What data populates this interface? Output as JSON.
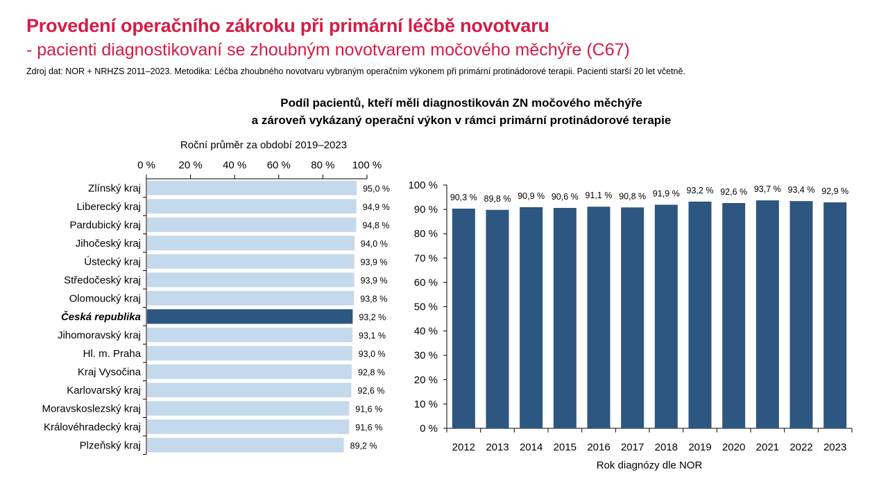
{
  "header": {
    "title": "Provedení operačního zákroku při primární léčbě novotvaru",
    "subtitle": "- pacienti diagnostikovaní se zhoubným novotvarem močového měchýře (C67)",
    "source": "Zdroj dat: NOR + NRHZS 2011–2023. Metodika: Léčba zhoubného novotvaru vybraným operačním výkonem při primární protinádorové terapii. Pacienti starší 20 let včetně."
  },
  "chart_heading": {
    "line1": "Podíl pacientů, kteří měli diagnostikován ZN močového měchýře",
    "line2": "a zároveň vykázaný operační výkon v rámci primární protinádorové terapie"
  },
  "colors": {
    "title": "#d41c46",
    "bar_light": "#c5d9ec",
    "bar_dark": "#2d5680",
    "axis": "#000000"
  },
  "chart_data": [
    {
      "type": "bar",
      "orientation": "horizontal",
      "title": "Roční průměr za období 2019–2023",
      "xlim": [
        0,
        100
      ],
      "xticks": [
        "0 %",
        "20 %",
        "40 %",
        "60 %",
        "80 %",
        "100 %"
      ],
      "value_suffix": " %",
      "highlight": "Česká republika",
      "categories": [
        "Zlínský kraj",
        "Liberecký kraj",
        "Pardubický kraj",
        "Jihočeský kraj",
        "Ústecký kraj",
        "Středočeský kraj",
        "Olomoucký kraj",
        "Česká republika",
        "Jihomoravský kraj",
        "Hl. m. Praha",
        "Kraj Vysočina",
        "Karlovarský kraj",
        "Moravskoslezský kraj",
        "Královéhradecký kraj",
        "Plzeňský kraj"
      ],
      "values": [
        95.0,
        94.9,
        94.8,
        94.0,
        93.9,
        93.9,
        93.8,
        93.2,
        93.1,
        93.0,
        92.8,
        92.6,
        91.6,
        91.6,
        89.2
      ],
      "labels": [
        "95,0 %",
        "94,9 %",
        "94,8 %",
        "94,0 %",
        "93,9 %",
        "93,9 %",
        "93,8 %",
        "93,2 %",
        "93,1 %",
        "93,0 %",
        "92,8 %",
        "92,6 %",
        "91,6 %",
        "91,6 %",
        "89,2 %"
      ]
    },
    {
      "type": "bar",
      "orientation": "vertical",
      "xlabel": "Rok diagnózy dle NOR",
      "ylim": [
        0,
        100
      ],
      "yticks": [
        "0 %",
        "10 %",
        "20 %",
        "30 %",
        "40 %",
        "50 %",
        "60 %",
        "70 %",
        "80 %",
        "90 %",
        "100 %"
      ],
      "categories": [
        "2012",
        "2013",
        "2014",
        "2015",
        "2016",
        "2017",
        "2018",
        "2019",
        "2020",
        "2021",
        "2022",
        "2023"
      ],
      "values": [
        90.3,
        89.8,
        90.9,
        90.6,
        91.1,
        90.8,
        91.9,
        93.2,
        92.6,
        93.7,
        93.4,
        92.9
      ],
      "labels": [
        "90,3 %",
        "89,8 %",
        "90,9 %",
        "90,6 %",
        "91,1 %",
        "90,8 %",
        "91,9 %",
        "93,2 %",
        "92,6 %",
        "93,7 %",
        "93,4 %",
        "92,9 %"
      ]
    }
  ]
}
